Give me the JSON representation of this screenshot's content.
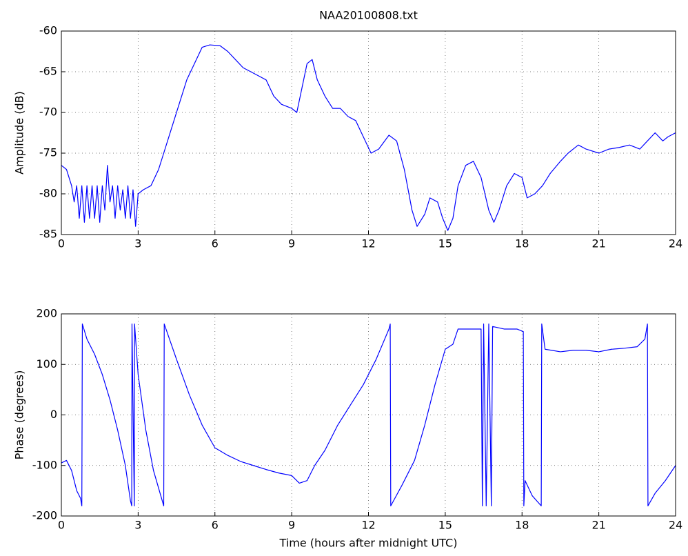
{
  "chart_data": [
    {
      "type": "line",
      "title": "NAA20100808.txt",
      "ylabel": "Amplitude (dB)",
      "color": "#0000ff",
      "grid": true,
      "xlim": [
        0,
        24
      ],
      "xticks": [
        0,
        3,
        6,
        9,
        12,
        15,
        18,
        21,
        24
      ],
      "ylim": [
        -85,
        -60
      ],
      "yticks": [
        -85,
        -80,
        -75,
        -70,
        -65,
        -60
      ],
      "x": [
        0,
        0.2,
        0.4,
        0.5,
        0.6,
        0.7,
        0.8,
        0.9,
        1.0,
        1.1,
        1.2,
        1.3,
        1.4,
        1.5,
        1.6,
        1.7,
        1.8,
        1.9,
        2.0,
        2.1,
        2.2,
        2.3,
        2.4,
        2.5,
        2.6,
        2.7,
        2.8,
        2.9,
        3.0,
        3.2,
        3.5,
        3.8,
        4.0,
        4.3,
        4.6,
        4.9,
        5.2,
        5.5,
        5.8,
        6.2,
        6.5,
        6.8,
        7.1,
        7.4,
        7.7,
        8.0,
        8.3,
        8.6,
        9.0,
        9.2,
        9.4,
        9.6,
        9.8,
        10.0,
        10.3,
        10.6,
        10.9,
        11.2,
        11.5,
        11.8,
        12.1,
        12.4,
        12.8,
        13.1,
        13.4,
        13.7,
        13.9,
        14.2,
        14.4,
        14.7,
        14.9,
        15.1,
        15.3,
        15.5,
        15.8,
        16.1,
        16.4,
        16.7,
        16.9,
        17.1,
        17.4,
        17.7,
        18.0,
        18.2,
        18.5,
        18.8,
        19.1,
        19.5,
        19.8,
        20.2,
        20.5,
        21.0,
        21.4,
        21.8,
        22.2,
        22.6,
        22.9,
        23.2,
        23.5,
        23.7,
        24.0
      ],
      "values": [
        -76.5,
        -77,
        -79,
        -81,
        -79,
        -83,
        -79,
        -83.5,
        -79,
        -83,
        -79,
        -83,
        -79,
        -83.5,
        -79,
        -82,
        -76.5,
        -81,
        -79,
        -83,
        -79,
        -82,
        -79.5,
        -83,
        -79,
        -83,
        -79.5,
        -84,
        -80,
        -79.5,
        -79,
        -77,
        -75,
        -72,
        -69,
        -66,
        -64,
        -62,
        -61.7,
        -61.8,
        -62.5,
        -63.5,
        -64.5,
        -65,
        -65.5,
        -66,
        -68,
        -69,
        -69.5,
        -70,
        -67,
        -64,
        -63.5,
        -66,
        -68,
        -69.5,
        -69.5,
        -70.5,
        -71,
        -73,
        -75,
        -74.5,
        -72.8,
        -73.5,
        -77,
        -82,
        -84,
        -82.5,
        -80.5,
        -81,
        -83,
        -84.5,
        -83,
        -79,
        -76.5,
        -76,
        -78,
        -82,
        -83.5,
        -82,
        -79,
        -77.5,
        -78,
        -80.5,
        -80,
        -79,
        -77.5,
        -76,
        -75,
        -74,
        -74.5,
        -75,
        -74.5,
        -74.3,
        -74,
        -74.5,
        -73.5,
        -72.5,
        -73.5,
        -73,
        -72.5
      ]
    },
    {
      "type": "line",
      "ylabel": "Phase (degrees)",
      "xlabel": "Time (hours after midnight UTC)",
      "color": "#0000ff",
      "grid": true,
      "xlim": [
        0,
        24
      ],
      "xticks": [
        0,
        3,
        6,
        9,
        12,
        15,
        18,
        21,
        24
      ],
      "ylim": [
        -200,
        200
      ],
      "yticks": [
        -200,
        -100,
        0,
        100,
        200
      ],
      "x": [
        0,
        0.2,
        0.4,
        0.6,
        0.75,
        0.8,
        0.82,
        1.0,
        1.3,
        1.6,
        1.9,
        2.2,
        2.5,
        2.7,
        2.75,
        2.76,
        2.85,
        2.86,
        3.0,
        3.3,
        3.6,
        4.0,
        4.02,
        4.5,
        5.0,
        5.5,
        6.0,
        6.5,
        7.0,
        7.5,
        8.0,
        8.5,
        9.0,
        9.3,
        9.6,
        9.9,
        10.3,
        10.8,
        11.3,
        11.8,
        12.3,
        12.8,
        12.85,
        12.87,
        13.3,
        13.8,
        14.2,
        14.6,
        15.0,
        15.3,
        15.5,
        16.0,
        16.4,
        16.45,
        16.5,
        16.6,
        16.7,
        16.8,
        16.85,
        17.3,
        17.8,
        18.05,
        18.07,
        18.12,
        18.4,
        18.75,
        18.77,
        18.9,
        19.5,
        20.0,
        20.5,
        21.0,
        21.5,
        22.0,
        22.5,
        22.8,
        22.9,
        22.92,
        23.2,
        23.6,
        24.0
      ],
      "values": [
        -95,
        -90,
        -110,
        -150,
        -165,
        -180,
        180,
        150,
        120,
        80,
        30,
        -30,
        -100,
        -170,
        -180,
        180,
        -180,
        180,
        80,
        -30,
        -110,
        -180,
        180,
        110,
        40,
        -20,
        -65,
        -80,
        -92,
        -100,
        -108,
        -115,
        -120,
        -135,
        -130,
        -100,
        -70,
        -20,
        20,
        60,
        110,
        170,
        180,
        -180,
        -140,
        -90,
        -20,
        60,
        130,
        140,
        170,
        170,
        170,
        -180,
        180,
        -180,
        180,
        -180,
        175,
        170,
        170,
        165,
        -180,
        -130,
        -160,
        -180,
        180,
        130,
        125,
        128,
        128,
        125,
        130,
        132,
        135,
        150,
        180,
        -180,
        -155,
        -130,
        -100
      ]
    }
  ]
}
